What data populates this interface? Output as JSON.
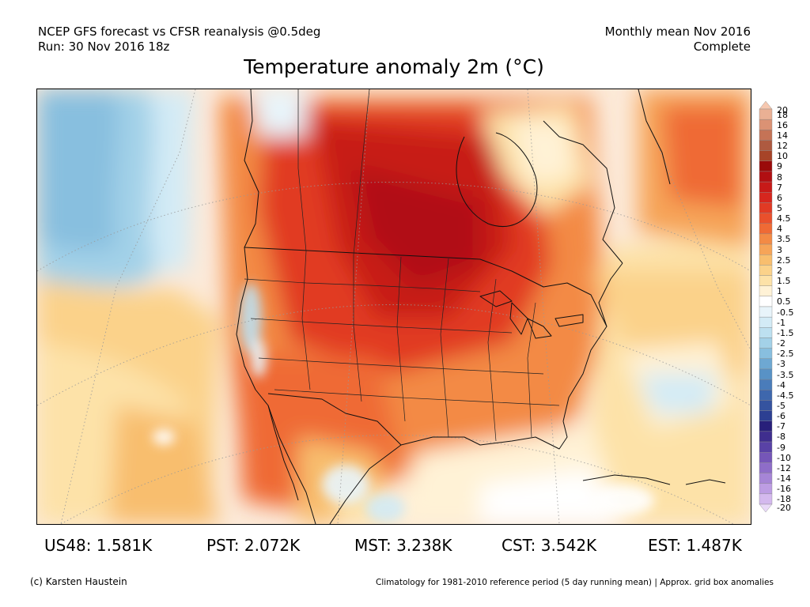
{
  "header": {
    "line1": "NCEP GFS forecast vs CFSR reanalysis @0.5deg",
    "line2": "Run: 30 Nov 2016 18z",
    "right1": "Monthly mean Nov 2016",
    "right2": "Complete"
  },
  "title": "Temperature anomaly 2m (°C)",
  "colorbar": {
    "labels": [
      "20",
      "18",
      "16",
      "14",
      "12",
      "10",
      "9",
      "8",
      "7",
      "6",
      "5",
      "4.5",
      "4",
      "3.5",
      "3",
      "2.5",
      "2",
      "1.5",
      "1",
      "0.5",
      "-0.5",
      "-1",
      "-1.5",
      "-2",
      "-2.5",
      "-3",
      "-3.5",
      "-4",
      "-4.5",
      "-5",
      "-6",
      "-7",
      "-8",
      "-9",
      "-10",
      "-12",
      "-14",
      "-16",
      "-18",
      "-20"
    ],
    "colors": [
      "#f6c8b0",
      "#eab094",
      "#db9274",
      "#c57356",
      "#ae5a40",
      "#a74428",
      "#9a0a0a",
      "#b10f12",
      "#c71a18",
      "#d6261e",
      "#e13a24",
      "#e9502c",
      "#ef6a35",
      "#f38a45",
      "#f6a458",
      "#f8be6e",
      "#fbd28a",
      "#fde2a8",
      "#fff2d6",
      "#ffffff",
      "#e8f4fa",
      "#d3ebf6",
      "#bde0f0",
      "#a3d1e8",
      "#88bfdf",
      "#6ea8d2",
      "#5892c6",
      "#4a7cba",
      "#3e67ad",
      "#35539f",
      "#2c3f92",
      "#281f7a",
      "#3f2e8e",
      "#5942a6",
      "#7556b8",
      "#8e6dc8",
      "#a685d6",
      "#bd9de3",
      "#d4b9ee",
      "#e9d9f8"
    ]
  },
  "stats": [
    {
      "label": "US48",
      "value": "1.581K"
    },
    {
      "label": "PST",
      "value": "2.072K"
    },
    {
      "label": "MST",
      "value": "3.238K"
    },
    {
      "label": "CST",
      "value": "3.542K"
    },
    {
      "label": "EST",
      "value": "1.487K"
    }
  ],
  "footer": {
    "left": "(c) Karsten Haustein",
    "right": "Climatology for 1981-2010 reference period (5 day running mean) | Approx. grid box anomalies"
  }
}
